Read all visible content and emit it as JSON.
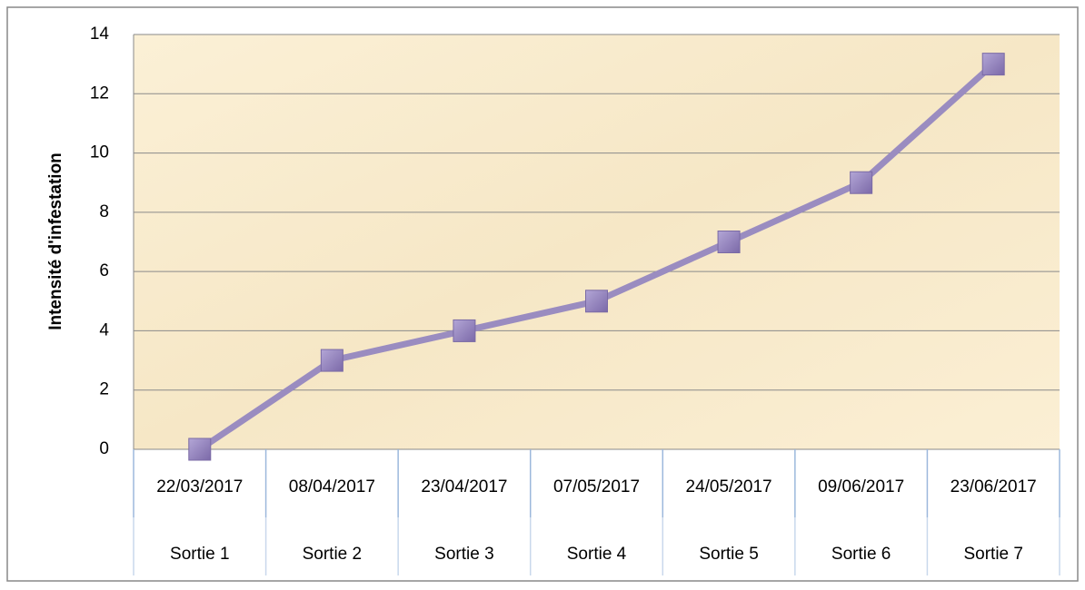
{
  "chart_data": {
    "type": "line",
    "y_label": "Intensité d'infestation",
    "categories": [
      "22/03/2017",
      "08/04/2017",
      "23/04/2017",
      "07/05/2017",
      "24/05/2017",
      "09/06/2017",
      "23/06/2017"
    ],
    "category_groups": [
      "Sortie 1",
      "Sortie 2",
      "Sortie 3",
      "Sortie 4",
      "Sortie 5",
      "Sortie 6",
      "Sortie 7"
    ],
    "series": [
      {
        "name": "Intensité d'infestation",
        "color": "#9a8cc0",
        "values": [
          0,
          3,
          4,
          5,
          7,
          9,
          13
        ]
      }
    ],
    "ylim": [
      0,
      14
    ],
    "yticks": [
      0,
      2,
      4,
      6,
      8,
      10,
      12,
      14
    ],
    "grid": true
  }
}
